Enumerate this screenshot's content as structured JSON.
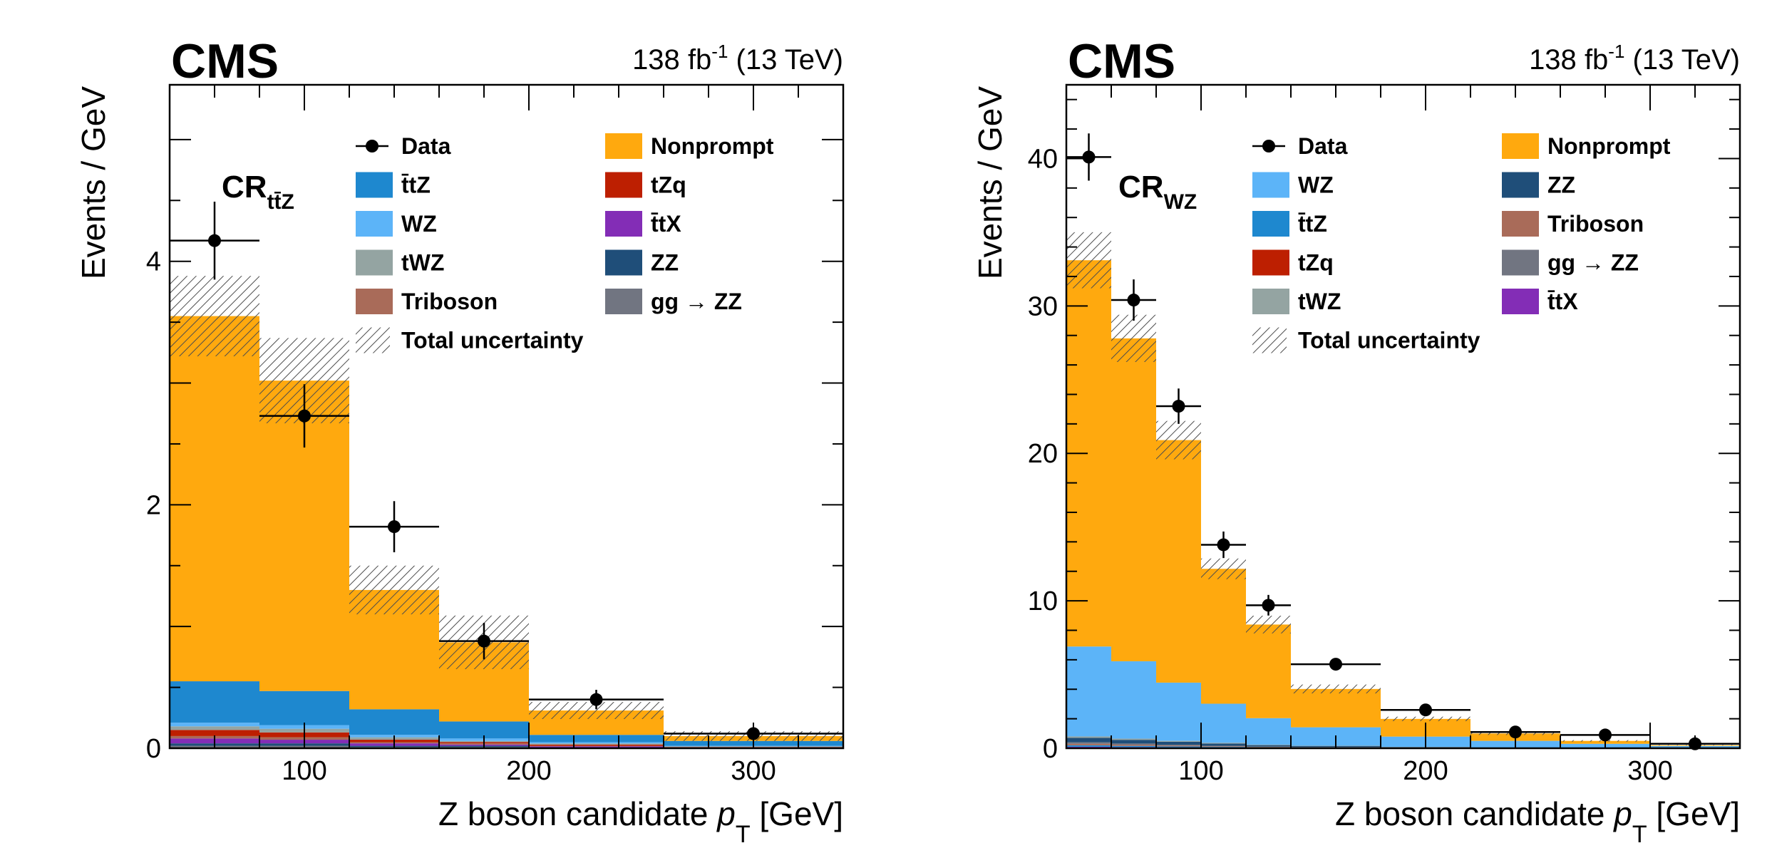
{
  "chart_data": [
    {
      "type": "bar",
      "stacked": true,
      "experiment": "CMS",
      "lumi": "138",
      "lumi_unit": "fb",
      "lumi_exp": "-1",
      "energy": "(13 TeV)",
      "region": "CR",
      "region_sub": "tt̄Z",
      "ylabel": "Events / GeV",
      "xlabel": "Z boson candidate",
      "xlabel_var": "p",
      "xlabel_sub": "T",
      "xlabel_unit": "[GeV]",
      "xlim": [
        40,
        340
      ],
      "ylim": [
        0,
        5.45
      ],
      "xticks": [
        100,
        200,
        300
      ],
      "yticks": [
        0,
        2,
        4
      ],
      "bin_edges": [
        40,
        80,
        120,
        160,
        200,
        260,
        340
      ],
      "stack_order": [
        "ggZZ",
        "ZZ",
        "ttX",
        "Triboson",
        "tZq",
        "tWZ",
        "WZ",
        "ttZ",
        "Nonprompt"
      ],
      "series": [
        {
          "key": "ggZZ",
          "name": "gg → ZZ",
          "color": "#717581",
          "values": [
            0.02,
            0.02,
            0.01,
            0.01,
            0.0,
            0.0
          ]
        },
        {
          "key": "ZZ",
          "name": "ZZ",
          "color": "#1f4e79",
          "values": [
            0.02,
            0.02,
            0.01,
            0.01,
            0.005,
            0.0
          ]
        },
        {
          "key": "ttX",
          "name": "t̄tX",
          "color": "#832db6",
          "values": [
            0.04,
            0.03,
            0.02,
            0.01,
            0.01,
            0.005
          ]
        },
        {
          "key": "Triboson",
          "name": "Triboson",
          "color": "#a96b59",
          "values": [
            0.02,
            0.02,
            0.01,
            0.01,
            0.005,
            0.0
          ]
        },
        {
          "key": "tZq",
          "name": "tZq",
          "color": "#bd1f01",
          "values": [
            0.05,
            0.04,
            0.02,
            0.01,
            0.01,
            0.005
          ]
        },
        {
          "key": "tWZ",
          "name": "tWZ",
          "color": "#94a4a2",
          "values": [
            0.03,
            0.03,
            0.02,
            0.01,
            0.01,
            0.005
          ]
        },
        {
          "key": "WZ",
          "name": "WZ",
          "color": "#5cb4f8",
          "values": [
            0.03,
            0.03,
            0.02,
            0.02,
            0.01,
            0.005
          ]
        },
        {
          "key": "ttZ",
          "name": "t̄tZ",
          "color": "#1e88cf",
          "values": [
            0.34,
            0.28,
            0.21,
            0.14,
            0.06,
            0.04
          ]
        },
        {
          "key": "Nonprompt",
          "name": "Nonprompt",
          "color": "#ffa90e",
          "values": [
            3.0,
            2.55,
            0.98,
            0.65,
            0.2,
            0.04
          ]
        }
      ],
      "uncertainty": [
        0.33,
        0.35,
        0.2,
        0.22,
        0.07,
        0.04
      ],
      "data": {
        "x": [
          60,
          100,
          140,
          180,
          230,
          300
        ],
        "y": [
          4.17,
          2.73,
          1.82,
          0.88,
          0.4,
          0.12
        ],
        "yerr": [
          0.32,
          0.26,
          0.21,
          0.15,
          0.08,
          0.04
        ]
      },
      "legend": {
        "placement": "top-right",
        "columns": 2,
        "left": [
          "Data",
          "ttZ",
          "WZ",
          "tWZ",
          "Triboson",
          "Total uncertainty"
        ],
        "right": [
          "Nonprompt",
          "tZq",
          "ttX",
          "ZZ",
          "ggZZ"
        ]
      },
      "legend_labels": {
        "Data": "Data",
        "Total uncertainty": "Total uncertainty"
      }
    },
    {
      "type": "bar",
      "stacked": true,
      "experiment": "CMS",
      "lumi": "138",
      "lumi_unit": "fb",
      "lumi_exp": "-1",
      "energy": "(13 TeV)",
      "region": "CR",
      "region_sub": "WZ",
      "ylabel": "Events / GeV",
      "xlabel": "Z boson candidate",
      "xlabel_var": "p",
      "xlabel_sub": "T",
      "xlabel_unit": "[GeV]",
      "xlim": [
        40,
        340
      ],
      "ylim": [
        0,
        45
      ],
      "xticks": [
        100,
        200,
        300
      ],
      "yticks": [
        0,
        10,
        20,
        30,
        40
      ],
      "bin_edges": [
        40,
        60,
        80,
        100,
        120,
        140,
        180,
        220,
        260,
        300,
        340
      ],
      "stack_order": [
        "tZq",
        "ttX",
        "ttZ",
        "Triboson",
        "ggZZ",
        "ZZ",
        "tWZ",
        "WZ",
        "Nonprompt"
      ],
      "series": [
        {
          "key": "tZq",
          "name": "tZq",
          "color": "#bd1f01",
          "values": [
            0.05,
            0.04,
            0.03,
            0.02,
            0.01,
            0.01,
            0.0,
            0.0,
            0.0,
            0.0
          ]
        },
        {
          "key": "ttX",
          "name": "t̄tX",
          "color": "#832db6",
          "values": [
            0.05,
            0.04,
            0.03,
            0.02,
            0.01,
            0.01,
            0.0,
            0.0,
            0.0,
            0.0
          ]
        },
        {
          "key": "ttZ",
          "name": "t̄tZ",
          "color": "#1e88cf",
          "values": [
            0.1,
            0.08,
            0.06,
            0.05,
            0.03,
            0.02,
            0.01,
            0.01,
            0.0,
            0.0
          ]
        },
        {
          "key": "Triboson",
          "name": "Triboson",
          "color": "#a96b59",
          "values": [
            0.1,
            0.08,
            0.06,
            0.04,
            0.03,
            0.02,
            0.01,
            0.01,
            0.0,
            0.0
          ]
        },
        {
          "key": "ggZZ",
          "name": "gg → ZZ",
          "color": "#717581",
          "values": [
            0.1,
            0.08,
            0.06,
            0.04,
            0.03,
            0.02,
            0.01,
            0.0,
            0.0,
            0.0
          ]
        },
        {
          "key": "ZZ",
          "name": "ZZ",
          "color": "#1f4e79",
          "values": [
            0.3,
            0.25,
            0.2,
            0.15,
            0.1,
            0.07,
            0.04,
            0.02,
            0.01,
            0.0
          ]
        },
        {
          "key": "tWZ",
          "name": "tWZ",
          "color": "#94a4a2",
          "values": [
            0.1,
            0.08,
            0.06,
            0.05,
            0.03,
            0.02,
            0.02,
            0.01,
            0.0,
            0.0
          ]
        },
        {
          "key": "WZ",
          "name": "WZ",
          "color": "#5cb4f8",
          "values": [
            6.1,
            5.25,
            3.95,
            2.65,
            1.8,
            1.25,
            0.7,
            0.45,
            0.29,
            0.15
          ]
        },
        {
          "key": "Nonprompt",
          "name": "Nonprompt",
          "color": "#ffa90e",
          "values": [
            26.2,
            21.9,
            16.45,
            9.15,
            6.35,
            2.6,
            1.2,
            0.5,
            0.2,
            0.05
          ]
        }
      ],
      "uncertainty": [
        1.9,
        1.6,
        1.3,
        0.7,
        0.6,
        0.3,
        0.15,
        0.1,
        0.05,
        0.02
      ],
      "data": {
        "x": [
          50,
          70,
          90,
          110,
          130,
          160,
          200,
          240,
          280,
          320
        ],
        "y": [
          40.1,
          30.4,
          23.2,
          13.8,
          9.7,
          5.7,
          2.6,
          1.1,
          0.9,
          0.3
        ],
        "yerr": [
          1.6,
          1.4,
          1.2,
          0.9,
          0.7,
          0.4,
          0.3,
          0.2,
          0.2,
          0.1
        ]
      },
      "legend": {
        "placement": "top-right",
        "columns": 2,
        "left": [
          "Data",
          "WZ",
          "ttZ",
          "tZq",
          "tWZ",
          "Total uncertainty"
        ],
        "right": [
          "Nonprompt",
          "ZZ",
          "Triboson",
          "ggZZ",
          "ttX"
        ]
      },
      "legend_labels": {
        "Data": "Data",
        "Total uncertainty": "Total uncertainty"
      }
    }
  ]
}
